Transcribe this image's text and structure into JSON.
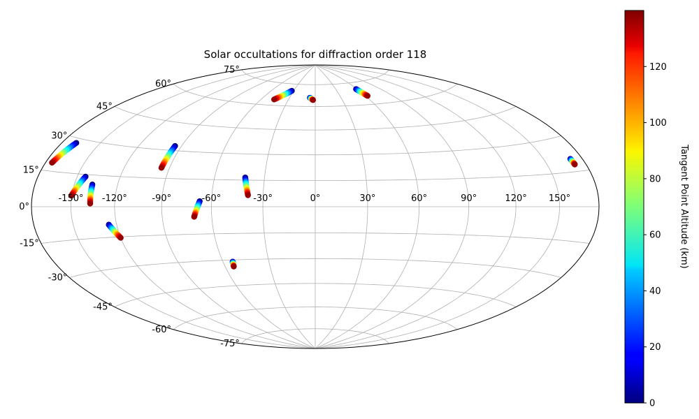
{
  "chart_data": {
    "type": "scatter",
    "projection": "hammer",
    "title": "Solar occultations for diffraction order 118",
    "longitude_ticks": [
      -150,
      -120,
      -90,
      -60,
      -30,
      0,
      30,
      60,
      90,
      120,
      150
    ],
    "longitude_tick_labels": [
      "-150°",
      "-120°",
      "-90°",
      "-60°",
      "-30°",
      "0°",
      "30°",
      "60°",
      "90°",
      "120°",
      "150°"
    ],
    "latitude_ticks": [
      75,
      60,
      45,
      30,
      15,
      0,
      -15,
      -30,
      -45,
      -60,
      -75
    ],
    "latitude_tick_labels": [
      "75°",
      "60°",
      "45°",
      "30°",
      "15°",
      "0°",
      "-15°",
      "-30°",
      "-45°",
      "-60°",
      "-75°"
    ],
    "grid": true,
    "colorbar": {
      "label": "Tangent Point Altitude (km)",
      "colormap": "jet",
      "range": [
        0,
        140
      ],
      "ticks": [
        0,
        20,
        40,
        60,
        80,
        100,
        120
      ],
      "tick_labels": [
        "0",
        "20",
        "40",
        "60",
        "80",
        "100",
        "120"
      ]
    },
    "tracks": [
      {
        "lon_start": -168.5,
        "lat_start": 28.0,
        "lon_end": -174.8,
        "lat_end": 18.5
      },
      {
        "lon_start": -144.0,
        "lat_start": 14.0,
        "lon_end": -150.3,
        "lat_end": 5.0
      },
      {
        "lon_start": -137.2,
        "lat_start": 10.5,
        "lon_end": -136.5,
        "lat_end": 1.5
      },
      {
        "lon_start": -125.2,
        "lat_start": -8.8,
        "lon_end": -120.0,
        "lat_end": -15.5
      },
      {
        "lon_start": -94.5,
        "lat_start": 32.5,
        "lon_end": -95.3,
        "lat_end": 20.5
      },
      {
        "lon_start": -67.0,
        "lat_start": 3.0,
        "lon_end": -70.5,
        "lat_end": -5.5
      },
      {
        "lon_start": -53.6,
        "lat_start": -31.0,
        "lon_end": -54.2,
        "lat_end": -33.8
      },
      {
        "lon_start": -41.5,
        "lat_start": 16.5,
        "lon_end": -38.8,
        "lat_end": 6.5
      },
      {
        "lon_start": -32.6,
        "lat_start": 70.2,
        "lon_end": -45.8,
        "lat_end": 63.8
      },
      {
        "lon_start": -6.2,
        "lat_start": 65.8,
        "lon_end": -2.5,
        "lat_end": 64.3
      },
      {
        "lon_start": 58.6,
        "lat_start": 70.5,
        "lon_end": 62.3,
        "lat_end": 65.5
      },
      {
        "lon_start": 170.4,
        "lat_start": 20.5,
        "lon_end": 171.0,
        "lat_end": 18.0
      }
    ]
  }
}
